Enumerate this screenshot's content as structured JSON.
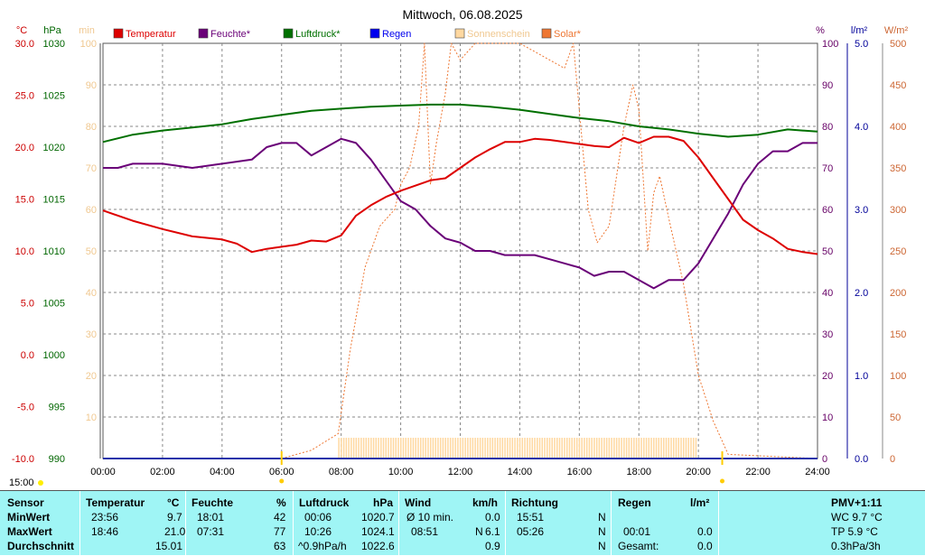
{
  "page_title": "Mittwoch, 06.08.2025",
  "colors": {
    "temperature": "#dd0000",
    "humidity": "#6a0078",
    "pressure": "#007000",
    "rain": "#0000ee",
    "sunshine": "#ffd8a0",
    "solar": "#ee7733",
    "grid": "#888888",
    "axis_left_temp": "#cc0000",
    "axis_left_hpa": "#006600",
    "axis_left_min": "#f0c890",
    "axis_right_pct": "#660066",
    "axis_right_lm2": "#000099",
    "axis_right_wm2": "#cc6633",
    "table_bg": "#9ff5f5"
  },
  "legend": [
    {
      "label": "Temperatur",
      "color": "#dd0000",
      "text_color": "#dd0000"
    },
    {
      "label": "Feuchte*",
      "color": "#6a0078",
      "text_color": "#6a0078"
    },
    {
      "label": "Luftdruck*",
      "color": "#007000",
      "text_color": "#007000"
    },
    {
      "label": "Regen",
      "color": "#0000ee",
      "text_color": "#0000ee"
    },
    {
      "label": "Sonnenschein",
      "color": "#ffd8a0",
      "text_color": "#f0c890"
    },
    {
      "label": "Solar*",
      "color": "#ee7733",
      "text_color": "#ee7733"
    }
  ],
  "axis_units": {
    "temp": "°C",
    "hpa": "hPa",
    "min": "min",
    "pct": "%",
    "lm2": "l/m²",
    "wm2": "W/m²"
  },
  "chart_data": {
    "type": "line",
    "title": "Mittwoch, 06.08.2025",
    "x_ticks": [
      "00:00",
      "02:00",
      "04:00",
      "06:00",
      "08:00",
      "10:00",
      "12:00",
      "14:00",
      "16:00",
      "18:00",
      "20:00",
      "22:00",
      "24:00"
    ],
    "x_range": [
      0,
      24
    ],
    "time_start_label": "15:00",
    "axes": {
      "temp": {
        "range": [
          -10,
          30
        ],
        "ticks": [
          "-10.0",
          "-5.0",
          "0.0",
          "5.0",
          "10.0",
          "15.0",
          "20.0",
          "25.0",
          "30.0"
        ]
      },
      "hpa": {
        "range": [
          990,
          1030
        ],
        "ticks": [
          "990",
          "995",
          "1000",
          "1005",
          "1010",
          "1015",
          "1020",
          "1025",
          "1030"
        ]
      },
      "min": {
        "range": [
          0,
          100
        ],
        "ticks": [
          "10",
          "20",
          "30",
          "40",
          "50",
          "60",
          "70",
          "80",
          "90",
          "100"
        ]
      },
      "pct": {
        "range": [
          0,
          100
        ],
        "ticks": [
          "0",
          "10",
          "20",
          "30",
          "40",
          "50",
          "60",
          "70",
          "80",
          "90",
          "100"
        ]
      },
      "lm2": {
        "range": [
          0,
          5
        ],
        "ticks": [
          "0.0",
          "1.0",
          "2.0",
          "3.0",
          "4.0",
          "5.0"
        ]
      },
      "wm2": {
        "range": [
          0,
          500
        ],
        "ticks": [
          "0",
          "50",
          "100",
          "150",
          "200",
          "250",
          "300",
          "350",
          "400",
          "450",
          "500"
        ]
      }
    },
    "series": [
      {
        "name": "Temperatur",
        "axis": "temp",
        "x": [
          0,
          1,
          2,
          3,
          4,
          4.5,
          5,
          5.5,
          6,
          6.5,
          7,
          7.5,
          8,
          8.5,
          9,
          9.5,
          10,
          10.5,
          11,
          11.5,
          12,
          12.5,
          13,
          13.5,
          14,
          14.5,
          15,
          15.5,
          16,
          16.5,
          17,
          17.5,
          18,
          18.5,
          19,
          19.5,
          20,
          20.5,
          21,
          21.5,
          22,
          22.5,
          23,
          23.5,
          24
        ],
        "y": [
          13.9,
          12.9,
          12.1,
          11.4,
          11.1,
          10.7,
          9.9,
          10.2,
          10.4,
          10.6,
          11.0,
          10.9,
          11.5,
          13.4,
          14.4,
          15.2,
          15.8,
          16.3,
          16.8,
          17.0,
          18.0,
          19.0,
          19.8,
          20.5,
          20.5,
          20.8,
          20.7,
          20.5,
          20.3,
          20.1,
          20.0,
          20.9,
          20.4,
          21.0,
          21.0,
          20.6,
          19.0,
          17.0,
          15.0,
          13.0,
          12.0,
          11.2,
          10.2,
          9.9,
          9.7
        ]
      },
      {
        "name": "Feuchte*",
        "axis": "pct",
        "x": [
          0,
          0.5,
          1,
          1.5,
          2,
          3,
          4,
          5,
          5.5,
          6,
          6.5,
          7,
          7.5,
          8,
          8.5,
          9,
          9.5,
          10,
          10.5,
          11,
          11.5,
          12,
          12.5,
          13,
          13.5,
          14,
          14.5,
          15,
          15.5,
          16,
          16.5,
          17,
          17.5,
          18,
          18.5,
          19,
          19.5,
          20,
          20.5,
          21,
          21.5,
          22,
          22.5,
          23,
          23.5,
          24
        ],
        "y": [
          70,
          70,
          71,
          71,
          71,
          70,
          71,
          72,
          75,
          76,
          76,
          73,
          75,
          77,
          76,
          72,
          67,
          62,
          60,
          56,
          53,
          52,
          50,
          50,
          49,
          49,
          49,
          48,
          47,
          46,
          44,
          45,
          45,
          43,
          41,
          43,
          43,
          47,
          53,
          59,
          66,
          71,
          74,
          74,
          76,
          76
        ]
      },
      {
        "name": "Luftdruck*",
        "axis": "hpa",
        "x": [
          0,
          1,
          2,
          3,
          4,
          5,
          6,
          7,
          8,
          9,
          10,
          11,
          12,
          13,
          14,
          15,
          16,
          17,
          18,
          19,
          20,
          21,
          22,
          23,
          24
        ],
        "y": [
          1020.5,
          1021.2,
          1021.6,
          1021.9,
          1022.2,
          1022.7,
          1023.1,
          1023.5,
          1023.7,
          1023.9,
          1024.0,
          1024.1,
          1024.1,
          1023.9,
          1023.6,
          1023.2,
          1022.8,
          1022.5,
          1022.0,
          1021.7,
          1021.3,
          1021.0,
          1021.2,
          1021.7,
          1021.5
        ]
      },
      {
        "name": "Solar*",
        "axis": "wm2",
        "x": [
          6,
          7,
          7.9,
          8.3,
          8.8,
          9.3,
          9.8,
          10,
          10.3,
          10.6,
          10.8,
          11,
          11.2,
          11.5,
          11.7,
          12,
          12.5,
          13,
          14,
          15,
          15.5,
          15.8,
          16,
          16.3,
          16.6,
          17,
          17.5,
          17.8,
          18,
          18.3,
          18.5,
          18.7,
          19,
          19.5,
          20,
          20.5,
          21,
          24
        ],
        "y": [
          0,
          10,
          30,
          130,
          230,
          280,
          300,
          330,
          350,
          400,
          500,
          330,
          380,
          440,
          500,
          480,
          500,
          500,
          500,
          480,
          470,
          500,
          420,
          300,
          260,
          280,
          400,
          450,
          420,
          250,
          320,
          340,
          290,
          210,
          100,
          45,
          5,
          0
        ]
      },
      {
        "name": "Sonnenschein",
        "axis": "min",
        "x": [
          7.9,
          19.9
        ],
        "y": [
          5,
          5
        ]
      }
    ]
  },
  "markers": [
    6,
    20.8
  ],
  "stats": {
    "headers": {
      "sensor": "Sensor",
      "temp": "Temperatur",
      "temp_unit": "°C",
      "hum": "Feuchte",
      "hum_unit": "%",
      "press": "Luftdruck",
      "press_unit": "hPa",
      "wind": "Wind",
      "wind_unit": "km/h",
      "dir": "Richtung",
      "rain": "Regen",
      "rain_unit": "l/m²",
      "pmv": "PMV+1:11"
    },
    "rows": [
      {
        "label": "MinWert",
        "temp_time": "23:56",
        "temp_val": "9.7",
        "hum_time": "18:01",
        "hum_val": "42",
        "press_time": "00:06",
        "press_val": "1020.7",
        "wind_time": "Ø 10 min.",
        "wind_dir": "",
        "wind_val": "0.0",
        "dir_time": "15:51",
        "dir_val": "N",
        "rain_time": "",
        "rain_val": "",
        "pmv": "WC 9.7 °C"
      },
      {
        "label": "MaxWert",
        "temp_time": "18:46",
        "temp_val": "21.0",
        "hum_time": "07:31",
        "hum_val": "77",
        "press_time": "10:26",
        "press_val": "1024.1",
        "wind_time": "08:51",
        "wind_dir": "N",
        "wind_val": "6.1",
        "dir_time": "05:26",
        "dir_val": "N",
        "rain_time": "00:01",
        "rain_val": "0.0",
        "pmv": "TP 5.9 °C"
      },
      {
        "label": "Durchschnitt",
        "temp_time": "",
        "temp_val": "15.01",
        "hum_time": "",
        "hum_val": "63",
        "press_time": "^0.9hPa/h",
        "press_val": "1022.6",
        "wind_time": "",
        "wind_dir": "",
        "wind_val": "0.9",
        "dir_time": "",
        "dir_val": "N",
        "rain_time": "Gesamt:",
        "rain_val": "0.0",
        "pmv": "0.3hPa/3h"
      }
    ]
  }
}
